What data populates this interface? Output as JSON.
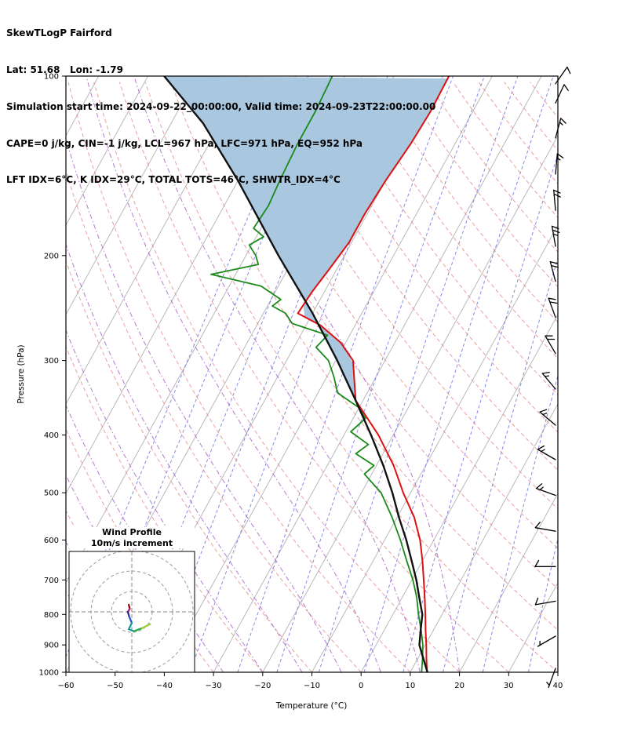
{
  "header": {
    "line1": "SkewTLogP Fairford",
    "line2": "Lat: 51.68   Lon: -1.79",
    "line3": "Simulation start time: 2024-09-22_00:00:00, Valid time: 2024-09-23T22:00:00.00",
    "line4": "CAPE=0 j/kg, CIN=-1 j/kg, LCL=967 hPa, LFC=971 hPa, EQ=952 hPa",
    "line5": "LFT IDX=6°C, K IDX=29°C, TOTAL TOTS=46°C, SHWTR_IDX=4°C"
  },
  "chart_data": {
    "type": "line",
    "title": "SkewTLogP Fairford",
    "xlabel": "Temperature (°C)",
    "ylabel": "Pressure (hPa)",
    "x_axis": {
      "min": -60,
      "max": 40,
      "ticks": [
        -60,
        -50,
        -40,
        -30,
        -20,
        -10,
        0,
        10,
        20,
        30,
        40
      ],
      "tick_labels": [
        "−60",
        "−50",
        "−40",
        "−30",
        "−20",
        "−10",
        "0",
        "10",
        "20",
        "30",
        "40"
      ]
    },
    "y_axis": {
      "min_hpa": 100,
      "max_hpa": 1000,
      "log": true,
      "ticks": [
        100,
        200,
        300,
        400,
        500,
        600,
        700,
        800,
        900,
        1000
      ]
    },
    "temperature_profile_c": [
      [
        1000,
        13.4
      ],
      [
        950,
        11.8
      ],
      [
        900,
        10.2
      ],
      [
        850,
        8.4
      ],
      [
        800,
        6.6
      ],
      [
        750,
        4.6
      ],
      [
        700,
        2.4
      ],
      [
        650,
        0.0
      ],
      [
        600,
        -2.8
      ],
      [
        550,
        -6.5
      ],
      [
        500,
        -11.5
      ],
      [
        450,
        -16.5
      ],
      [
        400,
        -23.0
      ],
      [
        350,
        -31.5
      ],
      [
        300,
        -36.5
      ],
      [
        280,
        -41.0
      ],
      [
        262,
        -47.0
      ],
      [
        250,
        -53.0
      ],
      [
        230,
        -52.5
      ],
      [
        210,
        -51.5
      ],
      [
        190,
        -50.5
      ],
      [
        170,
        -50.5
      ],
      [
        150,
        -50.0
      ],
      [
        130,
        -49.0
      ],
      [
        115,
        -48.6
      ],
      [
        100,
        -48.8
      ]
    ],
    "dewpoint_profile_c": [
      [
        1000,
        12.3
      ],
      [
        950,
        11.0
      ],
      [
        900,
        9.5
      ],
      [
        850,
        7.5
      ],
      [
        800,
        5.2
      ],
      [
        750,
        3.0
      ],
      [
        700,
        0.2
      ],
      [
        650,
        -3.2
      ],
      [
        600,
        -6.8
      ],
      [
        550,
        -11.0
      ],
      [
        500,
        -16.0
      ],
      [
        465,
        -21.5
      ],
      [
        450,
        -20.5
      ],
      [
        430,
        -25.5
      ],
      [
        415,
        -24.0
      ],
      [
        395,
        -29.0
      ],
      [
        375,
        -27.5
      ],
      [
        360,
        -30.0
      ],
      [
        340,
        -36.0
      ],
      [
        320,
        -38.5
      ],
      [
        300,
        -41.5
      ],
      [
        285,
        -45.5
      ],
      [
        272,
        -44.5
      ],
      [
        260,
        -53.0
      ],
      [
        250,
        -55.5
      ],
      [
        243,
        -59.0
      ],
      [
        237,
        -58.0
      ],
      [
        225,
        -63.5
      ],
      [
        215,
        -75.0
      ],
      [
        207,
        -66.5
      ],
      [
        200,
        -68.0
      ],
      [
        192,
        -70.5
      ],
      [
        186,
        -68.5
      ],
      [
        180,
        -71.5
      ],
      [
        165,
        -71.0
      ],
      [
        150,
        -71.5
      ],
      [
        130,
        -72.0
      ],
      [
        115,
        -72.0
      ],
      [
        100,
        -72.5
      ]
    ],
    "parcel_profile_c": [
      [
        1000,
        13.5
      ],
      [
        950,
        11.2
      ],
      [
        900,
        8.8
      ],
      [
        850,
        7.4
      ],
      [
        800,
        6.0
      ],
      [
        750,
        3.5
      ],
      [
        700,
        0.9
      ],
      [
        650,
        -2.2
      ],
      [
        600,
        -5.6
      ],
      [
        550,
        -9.6
      ],
      [
        500,
        -13.7
      ],
      [
        450,
        -18.6
      ],
      [
        400,
        -24.5
      ],
      [
        350,
        -31.5
      ],
      [
        300,
        -39.7
      ],
      [
        250,
        -50.0
      ],
      [
        200,
        -63.4
      ],
      [
        150,
        -79.9
      ],
      [
        120,
        -93.5
      ],
      [
        100,
        -106.7
      ]
    ],
    "shaded_region": {
      "between": [
        "parcel_profile_c",
        "temperature_profile_c"
      ],
      "from_hpa": 350,
      "to_hpa": 100,
      "color": "#a9c7df"
    },
    "wind_barbs_p_kt_dir": [
      [
        985,
        6,
        200
      ],
      [
        870,
        8,
        240
      ],
      [
        760,
        10,
        260
      ],
      [
        665,
        12,
        270
      ],
      [
        580,
        12,
        280
      ],
      [
        505,
        15,
        290
      ],
      [
        440,
        15,
        300
      ],
      [
        385,
        18,
        310
      ],
      [
        335,
        18,
        320
      ],
      [
        292,
        20,
        330
      ],
      [
        254,
        20,
        340
      ],
      [
        221,
        22,
        345
      ],
      [
        193,
        25,
        350
      ],
      [
        168,
        22,
        355
      ],
      [
        146,
        18,
        5
      ],
      [
        127,
        15,
        15
      ],
      [
        111,
        12,
        25
      ],
      [
        103,
        10,
        35
      ]
    ],
    "background": {
      "isotherms_c": {
        "start": -120,
        "end": 40,
        "step": 10,
        "color": "#b9b9b9"
      },
      "dry_adiabats_theta_c": {
        "start": -60,
        "end": 200,
        "step": 10,
        "color": "#e08080"
      },
      "moist_adiabats_start_c": [
        -44,
        -36,
        -28,
        -20,
        -12,
        -4,
        4,
        12,
        20
      ],
      "moist_color": "#a050c0",
      "mixing_ratio_g_kg": [
        0.01,
        0.02,
        0.05,
        0.1,
        0.2,
        0.5,
        1,
        2,
        4,
        7,
        12,
        20,
        35
      ],
      "mixing_color": "#5555dd"
    },
    "profile_colors": {
      "temperature": "#dd1111",
      "dewpoint": "#1a8a1a",
      "parcel": "#111111"
    },
    "hodograph": {
      "title_line1": "Wind Profile",
      "title_line2": "10m/s increment",
      "ring_increment_ms": 10,
      "rings_ms": [
        10,
        20,
        30
      ],
      "trace_segments": [
        {
          "color": "#8b0000",
          "points": [
            [
              -1.5,
              3.5
            ],
            [
              -1.0,
              1.5
            ]
          ]
        },
        {
          "color": "#aa2266",
          "points": [
            [
              -1.0,
              1.5
            ],
            [
              -2.0,
              0.0
            ]
          ]
        },
        {
          "color": "#332288",
          "points": [
            [
              -2.0,
              0.0
            ],
            [
              -1.2,
              -2.5
            ]
          ]
        },
        {
          "color": "#2255cc",
          "points": [
            [
              -1.2,
              -2.5
            ],
            [
              0.0,
              -5.5
            ]
          ]
        },
        {
          "color": "#119999",
          "points": [
            [
              0.0,
              -5.5
            ],
            [
              -1.5,
              -8.5
            ],
            [
              1.0,
              -9.5
            ]
          ]
        },
        {
          "color": "#22aa44",
          "points": [
            [
              1.0,
              -9.5
            ],
            [
              5.0,
              -8.0
            ]
          ]
        },
        {
          "color": "#99cc33",
          "points": [
            [
              5.0,
              -8.0
            ],
            [
              9.0,
              -6.0
            ]
          ]
        }
      ]
    }
  }
}
